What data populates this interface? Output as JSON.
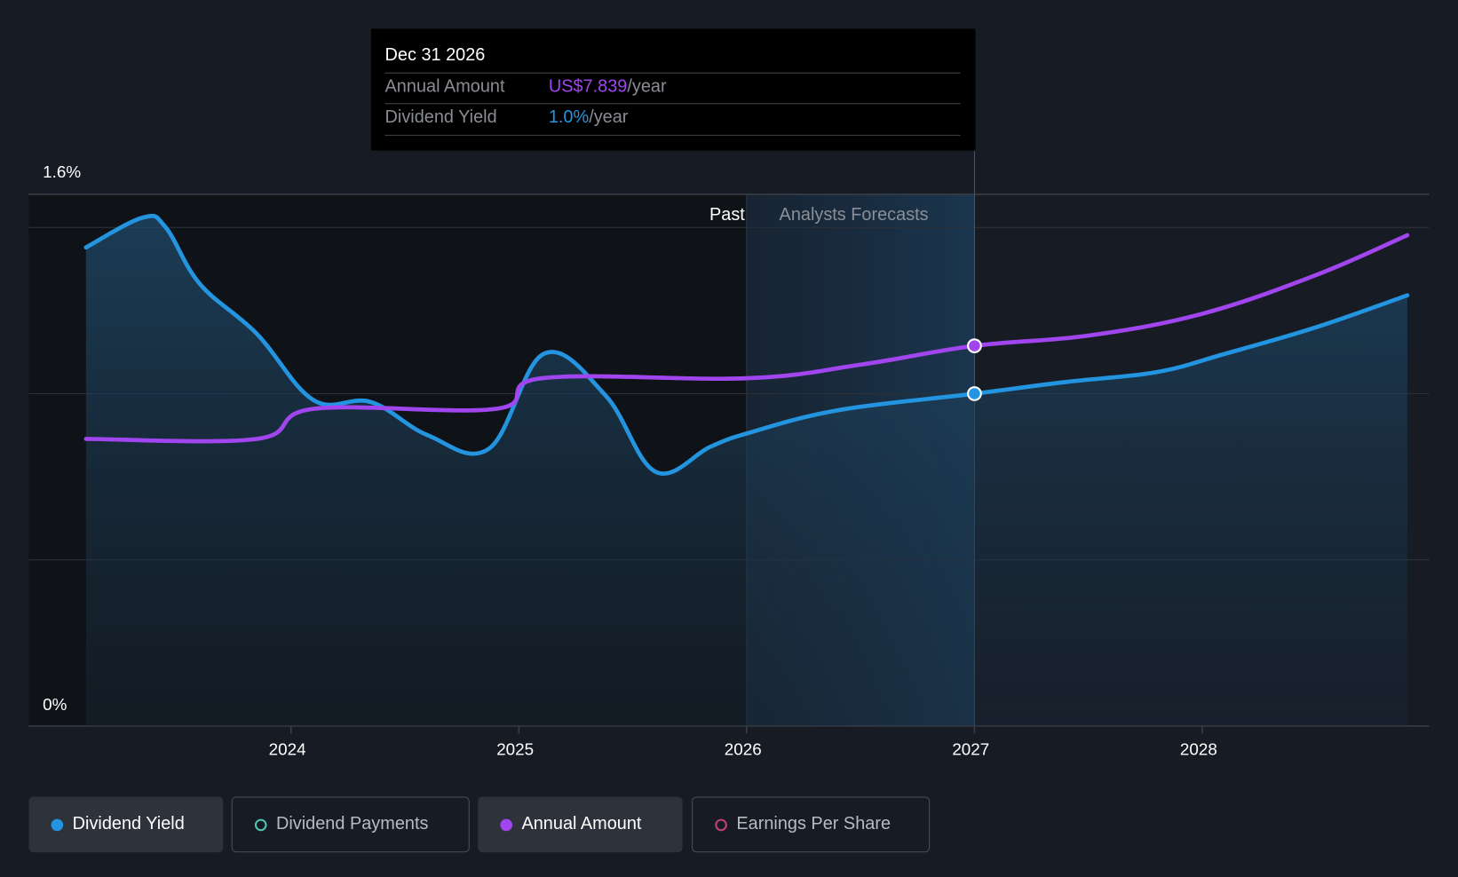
{
  "tooltip": {
    "date": "Dec 31 2026",
    "rows": [
      {
        "label": "Annual Amount",
        "value": "US$7.839",
        "suffix": "/year"
      },
      {
        "label": "Dividend Yield",
        "value": "1.0%",
        "suffix": "/year"
      }
    ]
  },
  "regions": {
    "past": "Past",
    "forecast": "Analysts Forecasts"
  },
  "legend": [
    {
      "label": "Dividend Yield",
      "color": "#2394df",
      "active": true
    },
    {
      "label": "Dividend Payments",
      "color": "#4fc4b4",
      "active": false
    },
    {
      "label": "Annual Amount",
      "color": "#a146ee",
      "active": true
    },
    {
      "label": "Earnings Per Share",
      "color": "#c2407a",
      "active": false
    }
  ],
  "chart_data": {
    "type": "line",
    "y_tick_labels": [
      "1.6%",
      "0%"
    ],
    "ylim": [
      0,
      1.6
    ],
    "x_tick_labels": [
      "2024",
      "2025",
      "2026",
      "2027",
      "2028"
    ],
    "x_ticks": [
      2024,
      2025,
      2026,
      2027,
      2028
    ],
    "xlim": [
      2023.1,
      2028.9
    ],
    "past_end": 2026.0,
    "highlight": [
      2026.08,
      2027.0
    ],
    "series": [
      {
        "name": "Dividend Yield",
        "unit": "%",
        "color": "#2394df",
        "points": [
          [
            2023.1,
            1.44
          ],
          [
            2023.35,
            1.53
          ],
          [
            2023.45,
            1.5
          ],
          [
            2023.6,
            1.33
          ],
          [
            2023.85,
            1.18
          ],
          [
            2024.1,
            0.98
          ],
          [
            2024.35,
            0.975
          ],
          [
            2024.6,
            0.875
          ],
          [
            2024.87,
            0.835
          ],
          [
            2025.11,
            1.12
          ],
          [
            2025.38,
            0.995
          ],
          [
            2025.6,
            0.765
          ],
          [
            2025.84,
            0.84
          ],
          [
            2026.0,
            0.88
          ],
          [
            2026.4,
            0.95
          ],
          [
            2027.0,
            1.0
          ],
          [
            2027.4,
            1.035
          ],
          [
            2027.8,
            1.065
          ],
          [
            2028.1,
            1.12
          ],
          [
            2028.5,
            1.2
          ],
          [
            2028.9,
            1.296
          ]
        ]
      },
      {
        "name": "Annual Amount",
        "unit": "US$",
        "color": "#a146ee",
        "points": [
          [
            2023.1,
            5.92
          ],
          [
            2023.85,
            5.92
          ],
          [
            2024.1,
            6.54
          ],
          [
            2024.9,
            6.54
          ],
          [
            2025.1,
            7.17
          ],
          [
            2026.0,
            7.17
          ],
          [
            2026.5,
            7.45
          ],
          [
            2027.0,
            7.839
          ],
          [
            2027.5,
            8.05
          ],
          [
            2028.0,
            8.5
          ],
          [
            2028.5,
            9.3
          ],
          [
            2028.9,
            10.12
          ]
        ]
      }
    ],
    "hover": {
      "x": 2027.0,
      "annual_amount": 7.839,
      "dividend_yield": 1.0
    }
  }
}
